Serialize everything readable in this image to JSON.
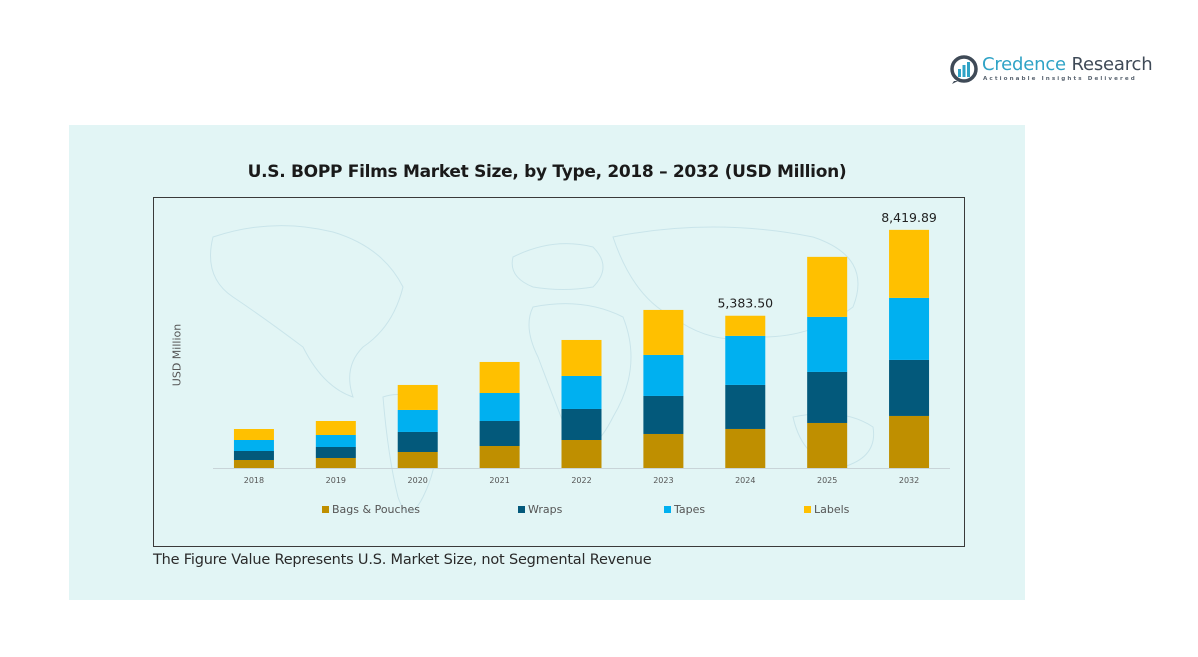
{
  "brand": {
    "name_part1": "Credence",
    "name_part2": " Research",
    "tagline": "Actionable Insights Delivered",
    "icon": "bar-chart-logo-icon"
  },
  "footnote": "The Figure Value Represents U.S. Market Size, not Segmental Revenue",
  "colors": {
    "panel_bg": "#e2f5f5",
    "bags_pouches": "#bf8f00",
    "wraps": "#03597b",
    "tapes": "#00b0f0",
    "labels": "#ffc000"
  },
  "chart_data": {
    "type": "bar",
    "stacked": true,
    "title": "U.S. BOPP Films Market Size, by Type, 2018 – 2032 (USD Million)",
    "xlabel": "",
    "ylabel": "USD Million",
    "ylim": [
      0,
      9900
    ],
    "grid": false,
    "legend_position": "bottom",
    "categories": [
      "2018",
      "2019",
      "2020",
      "2021",
      "2022",
      "2023",
      "2024",
      "2025",
      "2032"
    ],
    "series": [
      {
        "name": "Bags & Pouches",
        "color": "#bf8f00",
        "values": [
          283,
          354,
          566,
          778,
          990,
          1203,
          1380,
          1592,
          1840
        ]
      },
      {
        "name": "Wraps",
        "color": "#03597b",
        "values": [
          318,
          389,
          708,
          884,
          1097,
          1344,
          1557,
          1804,
          1981
        ]
      },
      {
        "name": "Tapes",
        "color": "#00b0f0",
        "values": [
          389,
          424,
          778,
          990,
          1167,
          1450,
          1734,
          1946,
          2193
        ]
      },
      {
        "name": "Labels",
        "color": "#ffc000",
        "values": [
          389,
          495,
          884,
          1097,
          1273,
          1592,
          712.5,
          2123,
          2405.89
        ]
      }
    ],
    "totals": [
      1379,
      1662,
      2936,
      3749,
      4527,
      5589,
      5383.5,
      7465,
      8419.89
    ],
    "data_labels": [
      {
        "category": "2024",
        "text": "5,383.50"
      },
      {
        "category": "2032",
        "text": "8,419.89"
      }
    ]
  }
}
